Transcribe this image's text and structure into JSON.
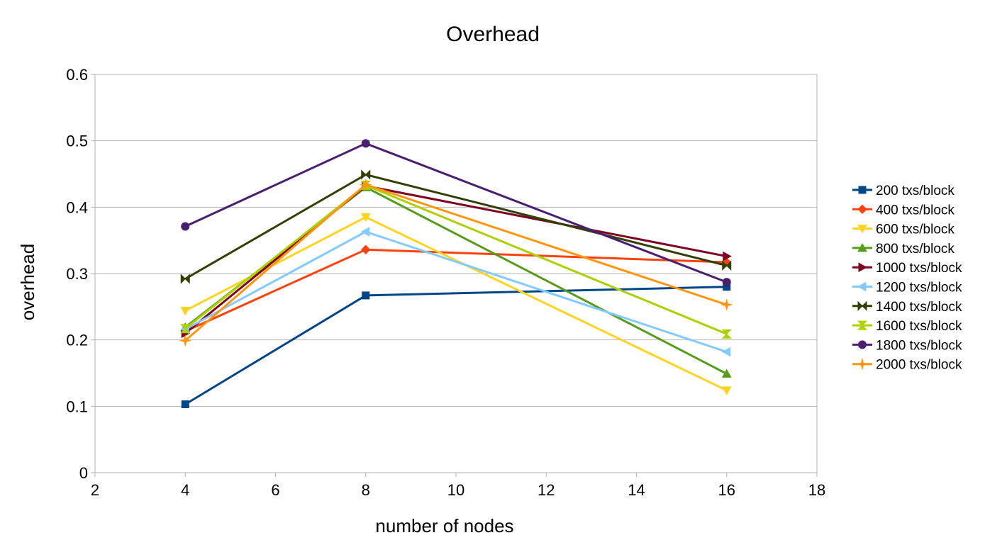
{
  "chart_data": {
    "type": "line",
    "title": "Overhead",
    "xlabel": "number of nodes",
    "ylabel": "overhead",
    "xlim": [
      2,
      18
    ],
    "ylim": [
      0,
      0.6
    ],
    "x_ticks": [
      2,
      4,
      6,
      8,
      10,
      12,
      14,
      16,
      18
    ],
    "y_ticks": [
      0,
      0.1,
      0.2,
      0.3,
      0.4,
      0.5,
      0.6
    ],
    "y_tick_labels": [
      "0",
      "0.1",
      "0.2",
      "0.3",
      "0.4",
      "0.5",
      "0.6"
    ],
    "grid": "horizontal",
    "legend_position": "right",
    "x": [
      4,
      8,
      16
    ],
    "series": [
      {
        "name": "200 txs/block",
        "color": "#004586",
        "marker": "square",
        "values": [
          0.103,
          0.267,
          0.28
        ]
      },
      {
        "name": "400 txs/block",
        "color": "#ff420e",
        "marker": "diamond",
        "values": [
          0.213,
          0.336,
          0.317
        ]
      },
      {
        "name": "600 txs/block",
        "color": "#ffd320",
        "marker": "triangle-down",
        "values": [
          0.244,
          0.385,
          0.124
        ]
      },
      {
        "name": "800 txs/block",
        "color": "#579d1c",
        "marker": "triangle-up",
        "values": [
          0.219,
          0.43,
          0.149
        ]
      },
      {
        "name": "1000 txs/block",
        "color": "#7e0021",
        "marker": "triangle-right",
        "values": [
          0.21,
          0.432,
          0.326
        ]
      },
      {
        "name": "1200 txs/block",
        "color": "#83caff",
        "marker": "triangle-left",
        "values": [
          0.216,
          0.363,
          0.182
        ]
      },
      {
        "name": "1400 txs/block",
        "color": "#314004",
        "marker": "bowtie",
        "values": [
          0.292,
          0.449,
          0.312
        ]
      },
      {
        "name": "1600 txs/block",
        "color": "#aecf00",
        "marker": "hourglass",
        "values": [
          0.217,
          0.433,
          0.209
        ]
      },
      {
        "name": "1800 txs/block",
        "color": "#4b1f6f",
        "marker": "circle",
        "values": [
          0.371,
          0.496,
          0.287
        ]
      },
      {
        "name": "2000 txs/block",
        "color": "#ff950e",
        "marker": "star",
        "values": [
          0.199,
          0.434,
          0.253
        ]
      }
    ]
  }
}
